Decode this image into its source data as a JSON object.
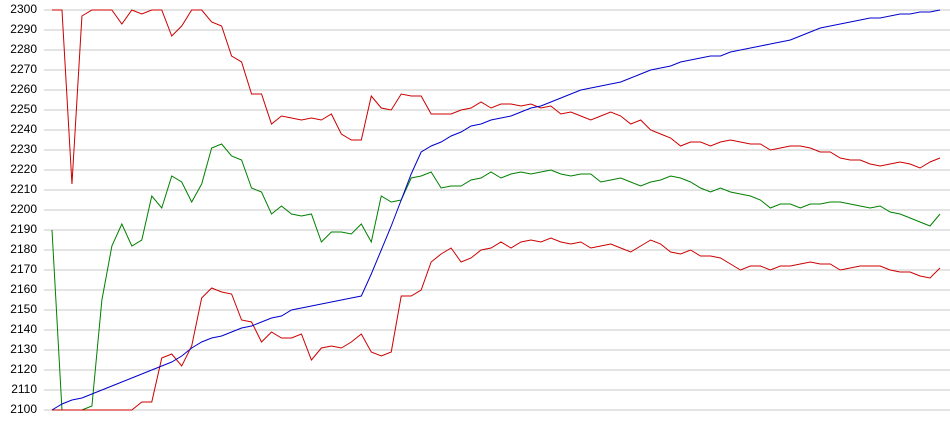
{
  "chart_data": {
    "type": "line",
    "ylim": [
      2100,
      2300
    ],
    "yticks": [
      2100,
      2110,
      2120,
      2130,
      2140,
      2150,
      2160,
      2170,
      2180,
      2190,
      2200,
      2210,
      2220,
      2230,
      2240,
      2250,
      2260,
      2270,
      2280,
      2290,
      2300
    ],
    "grid": true,
    "series": [
      {
        "color": "#cc0000",
        "values": [
          2300,
          2300,
          2213,
          2297,
          2300,
          2300,
          2300,
          2293,
          2300,
          2298,
          2300,
          2300,
          2287,
          2292,
          2300,
          2300,
          2294,
          2292,
          2277,
          2274,
          2258,
          2258,
          2243,
          2247,
          2246,
          2245,
          2246,
          2245,
          2248,
          2238,
          2235,
          2235,
          2257,
          2251,
          2250,
          2258,
          2257,
          2257,
          2248,
          2248,
          2248,
          2250,
          2251,
          2254,
          2251,
          2253,
          2253,
          2252,
          2253,
          2251,
          2252,
          2248,
          2249,
          2247,
          2245,
          2247,
          2249,
          2247,
          2243,
          2245,
          2240,
          2238,
          2236,
          2232,
          2234,
          2234,
          2232,
          2234,
          2235,
          2234,
          2233,
          2233,
          2230,
          2231,
          2232,
          2232,
          2231,
          2229,
          2229,
          2226,
          2225,
          2225,
          2223,
          2222,
          2223,
          2224,
          2223,
          2221,
          2224,
          2226
        ]
      },
      {
        "color": "#008000",
        "values": [
          2190,
          2100,
          2100,
          2100,
          2102,
          2155,
          2182,
          2193,
          2182,
          2185,
          2207,
          2201,
          2217,
          2214,
          2204,
          2213,
          2231,
          2233,
          2227,
          2225,
          2211,
          2209,
          2198,
          2202,
          2198,
          2197,
          2198,
          2184,
          2189,
          2189,
          2188,
          2193,
          2184,
          2207,
          2204,
          2205,
          2216,
          2217,
          2219,
          2211,
          2212,
          2212,
          2215,
          2216,
          2219,
          2216,
          2218,
          2219,
          2218,
          2219,
          2220,
          2218,
          2217,
          2218,
          2218,
          2214,
          2215,
          2216,
          2214,
          2212,
          2214,
          2215,
          2217,
          2216,
          2214,
          2211,
          2209,
          2211,
          2209,
          2208,
          2207,
          2205,
          2201,
          2203,
          2203,
          2201,
          2203,
          2203,
          2204,
          2204,
          2203,
          2202,
          2201,
          2202,
          2199,
          2198,
          2196,
          2194,
          2192,
          2198
        ]
      },
      {
        "color": "#cc0000",
        "values": [
          2100,
          2100,
          2100,
          2100,
          2100,
          2100,
          2100,
          2100,
          2100,
          2104,
          2104,
          2126,
          2128,
          2122,
          2132,
          2156,
          2161,
          2159,
          2158,
          2145,
          2144,
          2134,
          2139,
          2136,
          2136,
          2138,
          2125,
          2131,
          2132,
          2131,
          2134,
          2138,
          2129,
          2127,
          2129,
          2157,
          2157,
          2160,
          2174,
          2178,
          2181,
          2174,
          2176,
          2180,
          2181,
          2184,
          2181,
          2184,
          2185,
          2184,
          2186,
          2184,
          2183,
          2184,
          2181,
          2182,
          2183,
          2181,
          2179,
          2182,
          2185,
          2183,
          2179,
          2178,
          2180,
          2177,
          2177,
          2176,
          2173,
          2170,
          2172,
          2172,
          2170,
          2172,
          2172,
          2173,
          2174,
          2173,
          2173,
          2170,
          2171,
          2172,
          2172,
          2172,
          2170,
          2169,
          2169,
          2167,
          2166,
          2171
        ]
      },
      {
        "color": "#0000cc",
        "values": [
          2100,
          2103,
          2105,
          2106,
          2108,
          2110,
          2112,
          2114,
          2116,
          2118,
          2120,
          2122,
          2124,
          2127,
          2131,
          2134,
          2136,
          2137,
          2139,
          2141,
          2142,
          2144,
          2146,
          2147,
          2150,
          2151,
          2152,
          2153,
          2154,
          2155,
          2156,
          2157,
          2168,
          2180,
          2192,
          2205,
          2218,
          2229,
          2232,
          2234,
          2237,
          2239,
          2242,
          2243,
          2245,
          2246,
          2247,
          2249,
          2251,
          2252,
          2254,
          2256,
          2258,
          2260,
          2261,
          2262,
          2263,
          2264,
          2266,
          2268,
          2270,
          2271,
          2272,
          2274,
          2275,
          2276,
          2277,
          2277,
          2279,
          2280,
          2281,
          2282,
          2283,
          2284,
          2285,
          2287,
          2289,
          2291,
          2292,
          2293,
          2294,
          2295,
          2296,
          2296,
          2297,
          2298,
          2298,
          2299,
          2299,
          2300
        ]
      }
    ]
  }
}
